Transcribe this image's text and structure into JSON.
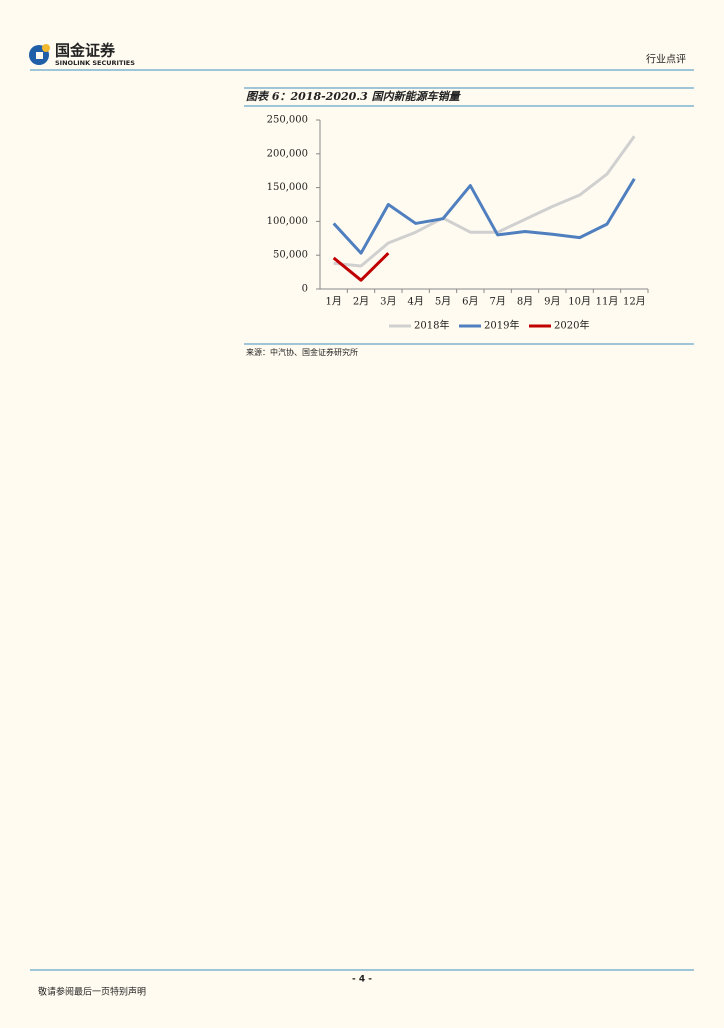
{
  "header": {
    "company": "国金证券",
    "company_en": "SINOLINK SECURITIES",
    "report_type": "行业点评"
  },
  "figure_title": "图表 6：2018-2020.3 国内新能源车销量",
  "source": "来源：中汽协、国金证券研究所",
  "footer": {
    "page": "- 4 -",
    "disclaimer": "敬请参阅最后一页特别声明"
  },
  "chart_data": {
    "type": "line",
    "categories": [
      "1月",
      "2月",
      "3月",
      "4月",
      "5月",
      "6月",
      "7月",
      "8月",
      "9月",
      "10月",
      "11月",
      "12月"
    ],
    "series": [
      {
        "name": "2018年",
        "color": "#d0d0d0",
        "values": [
          38000,
          34000,
          68000,
          84000,
          105000,
          84000,
          84000,
          103000,
          122000,
          139000,
          170000,
          226000
        ]
      },
      {
        "name": "2019年",
        "color": "#4f7fbf",
        "values": [
          97000,
          53000,
          125000,
          97000,
          104000,
          153000,
          80000,
          85000,
          81000,
          76000,
          96000,
          163000
        ]
      },
      {
        "name": "2020年",
        "color": "#c00000",
        "values": [
          46000,
          13000,
          53000,
          null,
          null,
          null,
          null,
          null,
          null,
          null,
          null,
          null
        ]
      }
    ],
    "ylim": [
      0,
      250000
    ],
    "yticks": [
      0,
      {
        "value": 50000,
        "label": "50,000"
      },
      {
        "value": 100000,
        "label": "100,000"
      },
      {
        "value": 150000,
        "label": "150,000"
      },
      {
        "value": 200000,
        "label": "200,000"
      },
      {
        "value": 250000,
        "label": "250,000"
      }
    ],
    "grid": false,
    "legend": "bottom"
  }
}
